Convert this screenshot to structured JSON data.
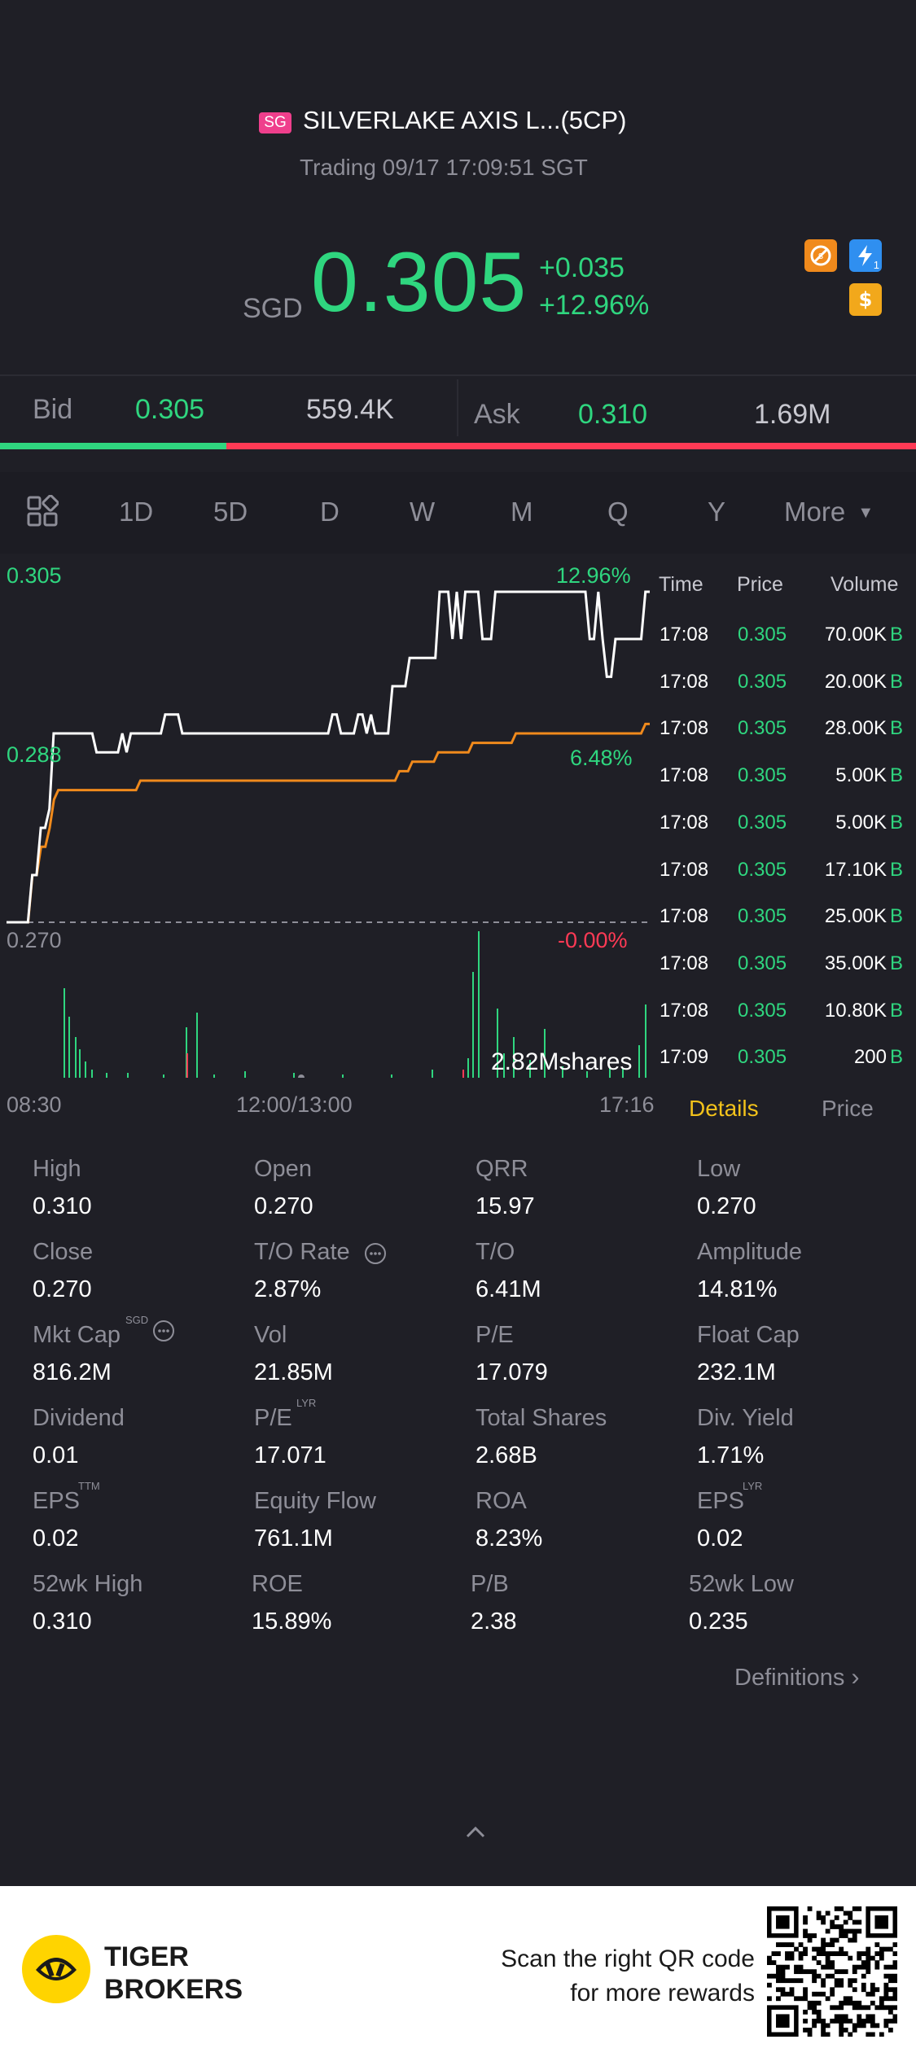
{
  "header": {
    "market_badge": "SG",
    "title": "SILVERLAKE AXIS L...(5CP)",
    "status": "Trading 09/17 17:09:51 SGT",
    "currency": "SGD",
    "price": "0.305",
    "change": "+0.035",
    "change_pct": "+12.96%",
    "icons": [
      "no-short-icon",
      "flash-icon",
      "dollar-icon"
    ],
    "flash_icon_sub": "1"
  },
  "quote": {
    "bid_label": "Bid",
    "bid_price": "0.305",
    "bid_size": "559.4K",
    "ask_label": "Ask",
    "ask_price": "0.310",
    "ask_size": "1.69M",
    "bid_share": 0.247
  },
  "periods": {
    "items": [
      "1D",
      "5D",
      "D",
      "W",
      "M",
      "Q",
      "Y"
    ],
    "active": "1D",
    "more": "More"
  },
  "chart": {
    "y_top": "0.305",
    "y_mid": "0.288",
    "y_bottom": "0.270",
    "pct_top": "12.96%",
    "pct_mid": "6.48%",
    "pct_bottom": "-0.00%",
    "volume_label": "2.82Mshares",
    "x_start": "08:30",
    "x_mid": "12:00/13:00",
    "x_end": "17:16",
    "colors": {
      "price": "#ffffff",
      "avg": "#f08a1c",
      "up": "#2fd67f",
      "down": "#ff3a55"
    }
  },
  "chart_data": {
    "type": "line",
    "ylim": [
      0.27,
      0.305
    ],
    "series": [
      {
        "values": [
          0.27,
          0.27,
          0.27,
          0.27,
          0.27,
          0.27,
          0.275,
          0.275,
          0.28,
          0.28,
          0.282,
          0.29,
          0.29,
          0.29,
          0.29,
          0.29,
          0.29,
          0.29,
          0.29,
          0.29,
          0.29,
          0.288,
          0.288,
          0.288,
          0.288,
          0.288,
          0.288,
          0.29,
          0.288,
          0.29,
          0.29,
          0.29,
          0.29,
          0.29,
          0.29,
          0.29,
          0.29,
          0.292,
          0.292,
          0.292,
          0.292,
          0.29,
          0.29,
          0.29,
          0.29,
          0.29,
          0.29,
          0.29,
          0.29,
          0.29,
          0.29,
          0.29,
          0.29,
          0.29,
          0.29,
          0.29,
          0.29,
          0.29,
          0.29,
          0.29,
          0.29,
          0.29,
          0.29,
          0.29,
          0.29,
          0.29,
          0.29,
          0.29,
          0.29,
          0.29,
          0.29,
          0.29,
          0.29,
          0.29,
          0.29,
          0.29,
          0.292,
          0.292,
          0.29,
          0.29,
          0.29,
          0.29,
          0.292,
          0.292,
          0.29,
          0.292,
          0.29,
          0.29,
          0.29,
          0.29,
          0.295,
          0.295,
          0.295,
          0.295,
          0.298,
          0.298,
          0.298,
          0.298,
          0.298,
          0.298,
          0.298,
          0.305,
          0.305,
          0.305,
          0.3,
          0.305,
          0.3,
          0.305,
          0.305,
          0.305,
          0.305,
          0.3,
          0.3,
          0.3,
          0.305,
          0.305,
          0.305,
          0.305,
          0.305,
          0.305,
          0.305,
          0.305,
          0.305,
          0.305,
          0.305,
          0.305,
          0.305,
          0.305,
          0.305,
          0.305,
          0.305,
          0.305,
          0.305,
          0.305,
          0.305,
          0.305,
          0.3,
          0.3,
          0.305,
          0.3,
          0.296,
          0.296,
          0.3,
          0.3,
          0.3,
          0.3,
          0.3,
          0.3,
          0.3,
          0.305,
          0.305
        ]
      },
      {
        "values": [
          0.27,
          0.27,
          0.27,
          0.27,
          0.27,
          0.27,
          0.275,
          0.275,
          0.278,
          0.278,
          0.28,
          0.283,
          0.284,
          0.284,
          0.284,
          0.284,
          0.284,
          0.284,
          0.284,
          0.284,
          0.284,
          0.284,
          0.284,
          0.284,
          0.284,
          0.284,
          0.284,
          0.284,
          0.284,
          0.284,
          0.284,
          0.285,
          0.285,
          0.285,
          0.285,
          0.285,
          0.285,
          0.285,
          0.285,
          0.285,
          0.285,
          0.285,
          0.285,
          0.285,
          0.285,
          0.285,
          0.285,
          0.285,
          0.285,
          0.285,
          0.285,
          0.285,
          0.285,
          0.285,
          0.285,
          0.285,
          0.285,
          0.285,
          0.285,
          0.285,
          0.285,
          0.285,
          0.285,
          0.285,
          0.285,
          0.285,
          0.285,
          0.285,
          0.285,
          0.285,
          0.285,
          0.285,
          0.285,
          0.285,
          0.285,
          0.285,
          0.285,
          0.285,
          0.285,
          0.285,
          0.285,
          0.285,
          0.285,
          0.285,
          0.285,
          0.285,
          0.285,
          0.285,
          0.285,
          0.285,
          0.285,
          0.286,
          0.286,
          0.286,
          0.287,
          0.287,
          0.287,
          0.287,
          0.287,
          0.287,
          0.288,
          0.288,
          0.288,
          0.288,
          0.288,
          0.288,
          0.288,
          0.288,
          0.289,
          0.289,
          0.289,
          0.289,
          0.289,
          0.289,
          0.289,
          0.289,
          0.289,
          0.289,
          0.29,
          0.29,
          0.29,
          0.29,
          0.29,
          0.29,
          0.29,
          0.29,
          0.29,
          0.29,
          0.29,
          0.29,
          0.29,
          0.29,
          0.29,
          0.29,
          0.29,
          0.29,
          0.29,
          0.29,
          0.29,
          0.29,
          0.29,
          0.29,
          0.29,
          0.29,
          0.29,
          0.29,
          0.29,
          0.29,
          0.291,
          0.291
        ]
      }
    ]
  },
  "trades": {
    "headers": {
      "time": "Time",
      "price": "Price",
      "volume": "Volume"
    },
    "rows": [
      {
        "time": "17:08",
        "price": "0.305",
        "volume": "70.00K",
        "side": "B"
      },
      {
        "time": "17:08",
        "price": "0.305",
        "volume": "20.00K",
        "side": "B"
      },
      {
        "time": "17:08",
        "price": "0.305",
        "volume": "28.00K",
        "side": "B"
      },
      {
        "time": "17:08",
        "price": "0.305",
        "volume": "5.00K",
        "side": "B"
      },
      {
        "time": "17:08",
        "price": "0.305",
        "volume": "5.00K",
        "side": "B"
      },
      {
        "time": "17:08",
        "price": "0.305",
        "volume": "17.10K",
        "side": "B"
      },
      {
        "time": "17:08",
        "price": "0.305",
        "volume": "25.00K",
        "side": "B"
      },
      {
        "time": "17:08",
        "price": "0.305",
        "volume": "35.00K",
        "side": "B"
      },
      {
        "time": "17:08",
        "price": "0.305",
        "volume": "10.80K",
        "side": "B"
      },
      {
        "time": "17:09",
        "price": "0.305",
        "volume": "200",
        "side": "B"
      }
    ],
    "tab_details": "Details",
    "tab_price": "Price"
  },
  "stats": {
    "high_label": "High",
    "high": "0.310",
    "open_label": "Open",
    "open": "0.270",
    "qrr_label": "QRR",
    "qrr": "15.97",
    "low_label": "Low",
    "low": "0.270",
    "close_label": "Close",
    "close": "0.270",
    "to_rate_label": "T/O Rate",
    "to_rate": "2.87%",
    "to_label": "T/O",
    "to": "6.41M",
    "amplitude_label": "Amplitude",
    "amplitude": "14.81%",
    "mktcap_label": "Mkt Cap",
    "mktcap_sup": "SGD",
    "mktcap": "816.2M",
    "vol_label": "Vol",
    "vol": "21.85M",
    "pe_label": "P/E",
    "pe": "17.079",
    "floatcap_label": "Float Cap",
    "floatcap": "232.1M",
    "dividend_label": "Dividend",
    "dividend": "0.01",
    "pe_lyr_label": "P/E",
    "pe_lyr_sup": "LYR",
    "pe_lyr": "17.071",
    "totalshares_label": "Total Shares",
    "totalshares": "2.68B",
    "divyield_label": "Div. Yield",
    "divyield": "1.71%",
    "eps_ttm_label": "EPS",
    "eps_ttm_sup": "TTM",
    "eps_ttm": "0.02",
    "equityflow_label": "Equity Flow",
    "equityflow": "761.1M",
    "roa_label": "ROA",
    "roa": "8.23%",
    "eps_lyr_label": "EPS",
    "eps_lyr_sup": "LYR",
    "eps_lyr": "0.02",
    "wk52high_label": "52wk High",
    "wk52high": "0.310",
    "roe_label": "ROE",
    "roe": "15.89%",
    "pb_label": "P/B",
    "pb": "2.38",
    "wk52low_label": "52wk Low",
    "wk52low": "0.235",
    "definitions": "Definitions"
  },
  "footer": {
    "brand_line1": "TIGER",
    "brand_line2": "BROKERS",
    "promo_line1": "Scan the right QR code",
    "promo_line2": "for more rewards"
  }
}
